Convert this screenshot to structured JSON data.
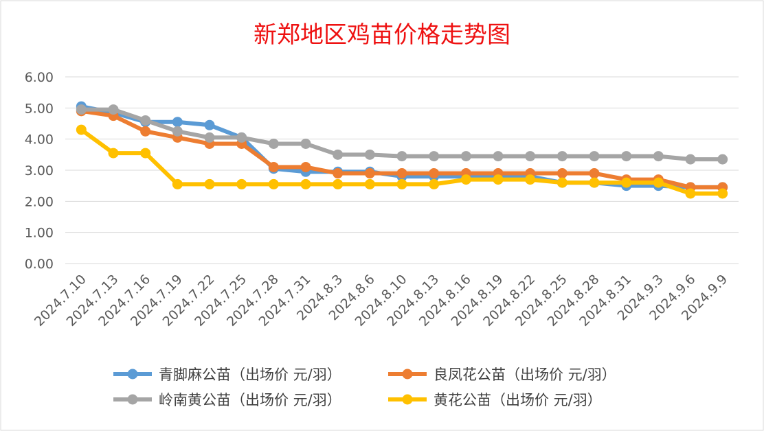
{
  "chart_data": {
    "type": "line",
    "title": "新郑地区鸡苗价格走势图",
    "xlabel": "",
    "ylabel": "",
    "ylim": [
      0,
      6
    ],
    "yticks": [
      "0.00",
      "1.00",
      "2.00",
      "3.00",
      "4.00",
      "5.00",
      "6.00"
    ],
    "grid": true,
    "legend_position": "bottom",
    "categories": [
      "2024.7.10",
      "2024.7.13",
      "2024.7.16",
      "2024.7.19",
      "2024.7.22",
      "2024.7.25",
      "2024.7.28",
      "2024.7.31",
      "2024.8.3",
      "2024.8.6",
      "2024.8.10",
      "2024.8.13",
      "2024.8.16",
      "2024.8.19",
      "2024.8.22",
      "2024.8.25",
      "2024.8.28",
      "2024.8.31",
      "2024.9.3",
      "2024.9.6",
      "2024.9.9"
    ],
    "series": [
      {
        "name": "青脚麻公苗（出场价 元/羽）",
        "color": "#5b9bd5",
        "values": [
          5.05,
          4.85,
          4.55,
          4.55,
          4.45,
          4.05,
          3.05,
          2.95,
          2.95,
          2.95,
          2.8,
          2.8,
          2.8,
          2.8,
          2.8,
          2.6,
          2.6,
          2.5,
          2.5,
          2.45,
          2.45
        ]
      },
      {
        "name": "良凤花公苗（出场价 元/羽）",
        "color": "#ed7d31",
        "values": [
          4.9,
          4.75,
          4.25,
          4.05,
          3.85,
          3.85,
          3.1,
          3.1,
          2.9,
          2.9,
          2.9,
          2.9,
          2.9,
          2.9,
          2.9,
          2.9,
          2.9,
          2.7,
          2.7,
          2.45,
          2.45
        ]
      },
      {
        "name": "岭南黄公苗（出场价 元/羽）",
        "color": "#a5a5a5",
        "values": [
          4.95,
          4.95,
          4.6,
          4.25,
          4.05,
          4.05,
          3.85,
          3.85,
          3.5,
          3.5,
          3.45,
          3.45,
          3.45,
          3.45,
          3.45,
          3.45,
          3.45,
          3.45,
          3.45,
          3.35,
          3.35
        ]
      },
      {
        "name": "黄花公苗（出场价 元/羽）",
        "color": "#ffc000",
        "values": [
          4.3,
          3.55,
          3.55,
          2.55,
          2.55,
          2.55,
          2.55,
          2.55,
          2.55,
          2.55,
          2.55,
          2.55,
          2.7,
          2.7,
          2.7,
          2.6,
          2.6,
          2.6,
          2.6,
          2.25,
          2.25
        ]
      }
    ]
  }
}
